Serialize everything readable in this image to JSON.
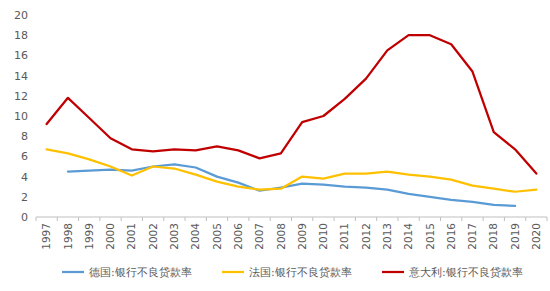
{
  "chart_data": {
    "type": "line",
    "categories": [
      "1997",
      "1998",
      "1999",
      "2000",
      "2001",
      "2002",
      "2003",
      "2004",
      "2005",
      "2006",
      "2007",
      "2008",
      "2009",
      "2010",
      "2011",
      "2012",
      "2013",
      "2014",
      "2015",
      "2016",
      "2017",
      "2018",
      "2019",
      "2020"
    ],
    "series": [
      {
        "name": "德国:银行不良贷款率",
        "color": "#5b9bd5",
        "values": [
          null,
          4.5,
          4.6,
          4.7,
          4.6,
          5.0,
          5.2,
          4.9,
          4.0,
          3.4,
          2.6,
          2.9,
          3.3,
          3.2,
          3.0,
          2.9,
          2.7,
          2.3,
          2.0,
          1.7,
          1.5,
          1.2,
          1.1,
          null
        ]
      },
      {
        "name": "法国:银行不良贷款率",
        "color": "#ffc000",
        "values": [
          6.7,
          6.3,
          5.7,
          5.0,
          4.1,
          5.0,
          4.8,
          4.2,
          3.5,
          3.0,
          2.7,
          2.8,
          4.0,
          3.8,
          4.3,
          4.3,
          4.5,
          4.2,
          4.0,
          3.7,
          3.1,
          2.8,
          2.5,
          2.7
        ]
      },
      {
        "name": "意大利:银行不良贷款率",
        "color": "#c00000",
        "values": [
          9.2,
          11.8,
          9.8,
          7.8,
          6.7,
          6.5,
          6.7,
          6.6,
          7.0,
          6.6,
          5.8,
          6.3,
          9.4,
          10.0,
          11.7,
          13.7,
          16.5,
          18.0,
          18.0,
          17.1,
          14.4,
          8.4,
          6.7,
          4.3
        ]
      }
    ],
    "ylim": [
      0,
      20
    ],
    "yticks": [
      0,
      2,
      4,
      6,
      8,
      10,
      12,
      14,
      16,
      18,
      20
    ],
    "grid": false,
    "legend": "bottom"
  }
}
